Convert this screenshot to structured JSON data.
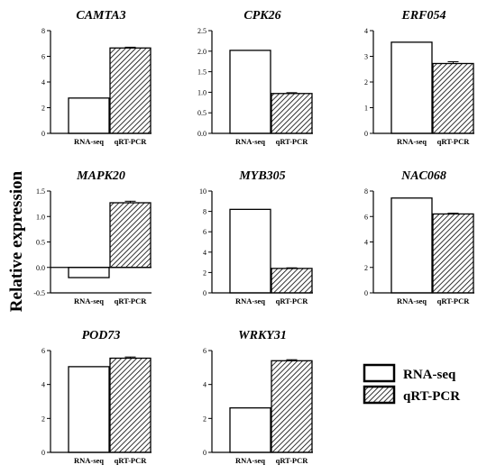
{
  "ylabel": "Relative expression",
  "legend": [
    {
      "name": "RNA-seq",
      "fill": "white"
    },
    {
      "name": "qRT-PCR",
      "fill": "hatch"
    }
  ],
  "chart_data": [
    {
      "type": "bar",
      "title": "CAMTA3",
      "categories": [
        "RNA-seq",
        "qRT-PCR"
      ],
      "values": [
        2.75,
        6.65
      ],
      "errors": [
        0,
        0.06
      ],
      "ylim": [
        0,
        8
      ],
      "yticks": [
        "0",
        "2",
        "4",
        "6",
        "8"
      ],
      "yvals": [
        0,
        2,
        4,
        6,
        8
      ]
    },
    {
      "type": "bar",
      "title": "CPK26",
      "categories": [
        "RNA-seq",
        "qRT-PCR"
      ],
      "values": [
        2.02,
        0.97
      ],
      "errors": [
        0,
        0.02
      ],
      "ylim": [
        0,
        2.5
      ],
      "yticks": [
        "0.0",
        "0.5",
        "1.0",
        "1.5",
        "2.0",
        "2.5"
      ],
      "yvals": [
        0,
        0.5,
        1,
        1.5,
        2,
        2.5
      ]
    },
    {
      "type": "bar",
      "title": "ERF054",
      "categories": [
        "RNA-seq",
        "qRT-PCR"
      ],
      "values": [
        3.55,
        2.72
      ],
      "errors": [
        0,
        0.07
      ],
      "ylim": [
        0,
        4
      ],
      "yticks": [
        "0",
        "1",
        "2",
        "3",
        "4"
      ],
      "yvals": [
        0,
        1,
        2,
        3,
        4
      ]
    },
    {
      "type": "bar",
      "title": "MAPK20",
      "categories": [
        "RNA-seq",
        "qRT-PCR"
      ],
      "values": [
        -0.2,
        1.27
      ],
      "errors": [
        0,
        0.03
      ],
      "ylim": [
        -0.5,
        1.5
      ],
      "yticks": [
        "-0.5",
        "0.0",
        "0.5",
        "1.0",
        "1.5"
      ],
      "yvals": [
        -0.5,
        0,
        0.5,
        1,
        1.5
      ]
    },
    {
      "type": "bar",
      "title": "MYB305",
      "categories": [
        "RNA-seq",
        "qRT-PCR"
      ],
      "values": [
        8.2,
        2.4
      ],
      "errors": [
        0,
        0.06
      ],
      "ylim": [
        0,
        10
      ],
      "yticks": [
        "0",
        "2",
        "4",
        "6",
        "8",
        "10"
      ],
      "yvals": [
        0,
        2,
        4,
        6,
        8,
        10
      ]
    },
    {
      "type": "bar",
      "title": "NAC068",
      "categories": [
        "RNA-seq",
        "qRT-PCR"
      ],
      "values": [
        7.45,
        6.2
      ],
      "errors": [
        0,
        0.06
      ],
      "ylim": [
        0,
        8
      ],
      "yticks": [
        "0",
        "2",
        "4",
        "6",
        "8"
      ],
      "yvals": [
        0,
        2,
        4,
        6,
        8
      ]
    },
    {
      "type": "bar",
      "title": "POD73",
      "categories": [
        "RNA-seq",
        "qRT-PCR"
      ],
      "values": [
        5.05,
        5.55
      ],
      "errors": [
        0,
        0.07
      ],
      "ylim": [
        0,
        6
      ],
      "yticks": [
        "0",
        "2",
        "4",
        "6"
      ],
      "yvals": [
        0,
        2,
        4,
        6
      ]
    },
    {
      "type": "bar",
      "title": "WRKY31",
      "categories": [
        "RNA-seq",
        "qRT-PCR"
      ],
      "values": [
        2.62,
        5.4
      ],
      "errors": [
        0,
        0.06
      ],
      "ylim": [
        0,
        6
      ],
      "yticks": [
        "0",
        "2",
        "4",
        "6"
      ],
      "yvals": [
        0,
        2,
        4,
        6
      ]
    }
  ]
}
